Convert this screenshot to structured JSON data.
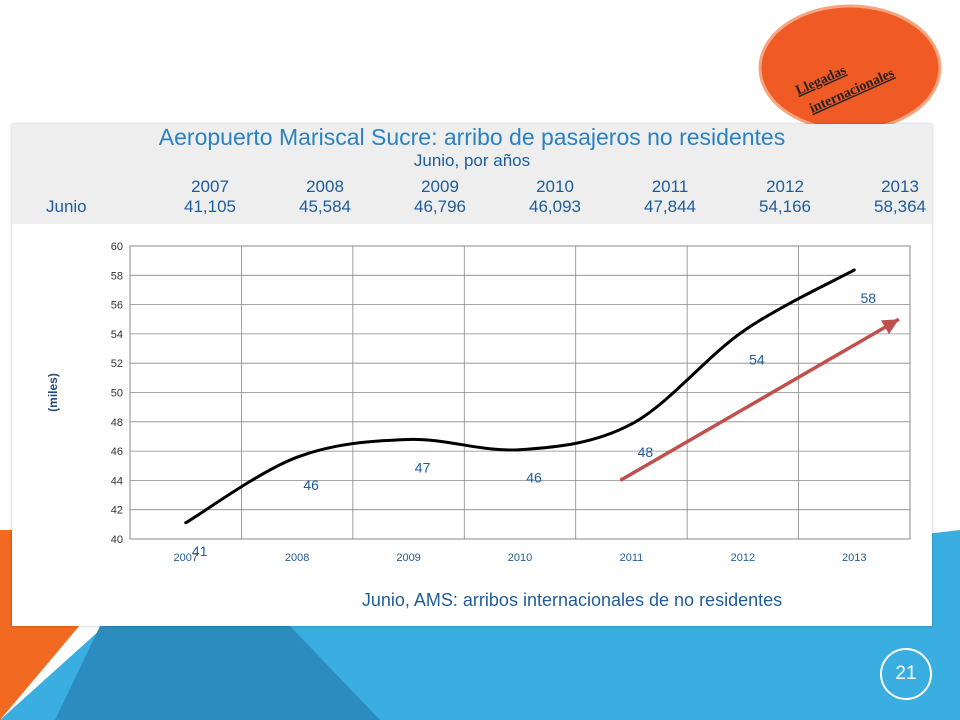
{
  "slide": {
    "badge_text": [
      "Llegadas",
      "internacionales"
    ],
    "page_number": "21"
  },
  "table": {
    "title": "Aeropuerto Mariscal Sucre: arribo de pasajeros no residentes",
    "subtitle": "Junio, por años",
    "row_label": "Junio",
    "years": [
      "2007",
      "2008",
      "2009",
      "2010",
      "2011",
      "2012",
      "2013"
    ],
    "values": [
      "41,105",
      "45,584",
      "46,796",
      "46,093",
      "47,844",
      "54,166",
      "58,364"
    ]
  },
  "chart_data": {
    "type": "line",
    "title": "Junio, AMS: arribos internacionales de no residentes",
    "xlabel": "",
    "ylabel": "(miles)",
    "categories": [
      "2007",
      "2008",
      "2009",
      "2010",
      "2011",
      "2012",
      "2013"
    ],
    "values": [
      41.105,
      45.584,
      46.796,
      46.093,
      47.844,
      54.166,
      58.364
    ],
    "data_labels": [
      "41",
      "46",
      "47",
      "46",
      "48",
      "54",
      "58"
    ],
    "ylim": [
      40,
      60
    ],
    "yticks": [
      "40",
      "42",
      "44",
      "46",
      "48",
      "50",
      "52",
      "54",
      "56",
      "58",
      "60"
    ],
    "grid": true,
    "legend": "none",
    "trend_arrow": {
      "from_x": "2011",
      "from_y": 44,
      "to_x": "2013",
      "to_y": 55
    },
    "colors": {
      "line": "#000000",
      "arrow": "#c0504d",
      "labels": "#1f5c99",
      "axis_text": "#1f5c99",
      "grid": "#888888"
    }
  },
  "colors": {
    "orange": "#f26a21",
    "blue": "#3aaee0",
    "blue_dark": "#2c8cc0",
    "badge": "#f05a24"
  }
}
